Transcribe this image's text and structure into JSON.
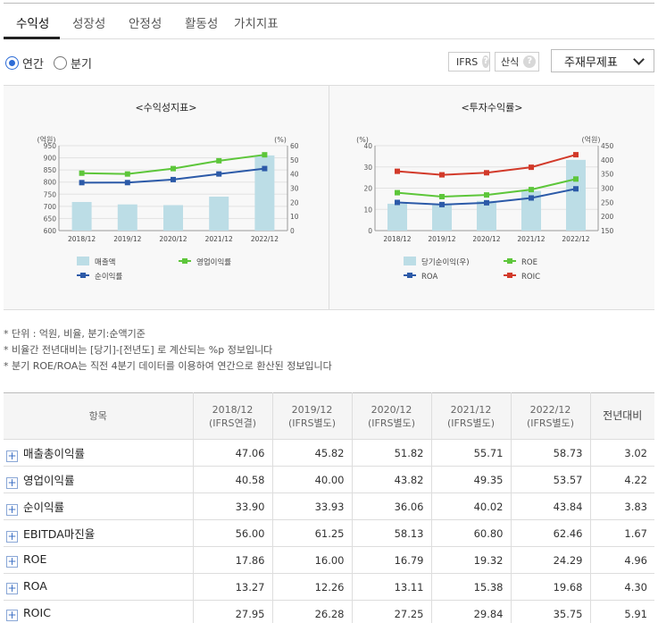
{
  "tabs": [
    {
      "label": "수익성",
      "active": true
    },
    {
      "label": "성장성",
      "active": false
    },
    {
      "label": "안정성",
      "active": false
    },
    {
      "label": "활동성",
      "active": false
    },
    {
      "label": "가치지표",
      "active": false
    }
  ],
  "period": {
    "annual": "연간",
    "quarter": "분기",
    "selected": "annual"
  },
  "buttons": {
    "ifrs": "IFRS",
    "formula": "산식",
    "help": "?"
  },
  "statement_select": "주재무제표",
  "colors": {
    "bar": "#bcdde6",
    "green": "#5dc63a",
    "blue": "#2c5aa8",
    "red": "#d23a2a",
    "accent": "#2d6cd6"
  },
  "chart_data": [
    {
      "type": "bar+line",
      "title": "<수익성지표>",
      "categories": [
        "2018/12",
        "2019/12",
        "2020/12",
        "2021/12",
        "2022/12"
      ],
      "left_axis": {
        "unit": "(억원)",
        "range": [
          600,
          950
        ],
        "ticks": [
          "950",
          "900",
          "850",
          "800",
          "750",
          "700",
          "650",
          "600"
        ]
      },
      "right_axis": {
        "unit": "(%)",
        "range": [
          0,
          60
        ],
        "ticks": [
          "60",
          "50",
          "40",
          "30",
          "20",
          "10",
          "0"
        ]
      },
      "series": [
        {
          "name": "매출액",
          "kind": "bar",
          "axis": "left",
          "values": [
            718,
            708,
            705,
            740,
            910
          ]
        },
        {
          "name": "영업이익률",
          "kind": "line",
          "axis": "right",
          "color": "#5dc63a",
          "values": [
            40.58,
            40.0,
            43.82,
            49.35,
            53.57
          ]
        },
        {
          "name": "순이익률",
          "kind": "line",
          "axis": "right",
          "color": "#2c5aa8",
          "values": [
            33.9,
            33.93,
            36.06,
            40.02,
            43.84
          ]
        }
      ]
    },
    {
      "type": "bar+line",
      "title": "<투자수익률>",
      "categories": [
        "2018/12",
        "2019/12",
        "2020/12",
        "2021/12",
        "2022/12"
      ],
      "left_axis": {
        "unit": "(%)",
        "range": [
          0,
          40
        ],
        "ticks": [
          "40",
          "30",
          "20",
          "10",
          "0"
        ]
      },
      "right_axis": {
        "unit": "(억원)",
        "range": [
          150,
          450
        ],
        "ticks": [
          "450",
          "400",
          "350",
          "300",
          "250",
          "200",
          "150"
        ]
      },
      "series": [
        {
          "name": "당기순이익(우)",
          "kind": "bar",
          "axis": "right",
          "values": [
            245,
            243,
            255,
            290,
            400
          ]
        },
        {
          "name": "ROE",
          "kind": "line",
          "axis": "left",
          "color": "#5dc63a",
          "values": [
            17.86,
            16.0,
            16.79,
            19.32,
            24.29
          ]
        },
        {
          "name": "ROA",
          "kind": "line",
          "axis": "left",
          "color": "#2c5aa8",
          "values": [
            13.27,
            12.26,
            13.11,
            15.38,
            19.68
          ]
        },
        {
          "name": "ROIC",
          "kind": "line",
          "axis": "left",
          "color": "#d23a2a",
          "values": [
            27.95,
            26.28,
            27.25,
            29.84,
            35.75
          ]
        }
      ]
    }
  ],
  "notes": [
    "* 단위 : 억원, 비율, 분기:순액기준",
    "* 비율간 전년대비는 [당기]-[전년도] 로 계산되는 %p 정보입니다",
    "* 분기 ROE/ROA는 직전 4분기 데이터를 이용하여 연간으로 환산된 정보입니다"
  ],
  "table": {
    "item_header": "항목",
    "columns": [
      {
        "year": "2018/12",
        "basis": "(IFRS연결)"
      },
      {
        "year": "2019/12",
        "basis": "(IFRS별도)"
      },
      {
        "year": "2020/12",
        "basis": "(IFRS별도)"
      },
      {
        "year": "2021/12",
        "basis": "(IFRS별도)"
      },
      {
        "year": "2022/12",
        "basis": "(IFRS별도)"
      }
    ],
    "yoy_header": "전년대비",
    "rows": [
      {
        "label": "매출총이익률",
        "values": [
          "47.06",
          "45.82",
          "51.82",
          "55.71",
          "58.73"
        ],
        "yoy": "3.02"
      },
      {
        "label": "영업이익률",
        "values": [
          "40.58",
          "40.00",
          "43.82",
          "49.35",
          "53.57"
        ],
        "yoy": "4.22"
      },
      {
        "label": "순이익률",
        "values": [
          "33.90",
          "33.93",
          "36.06",
          "40.02",
          "43.84"
        ],
        "yoy": "3.83"
      },
      {
        "label": "EBITDA마진율",
        "values": [
          "56.00",
          "61.25",
          "58.13",
          "60.80",
          "62.46"
        ],
        "yoy": "1.67"
      },
      {
        "label": "ROE",
        "values": [
          "17.86",
          "16.00",
          "16.79",
          "19.32",
          "24.29"
        ],
        "yoy": "4.96"
      },
      {
        "label": "ROA",
        "values": [
          "13.27",
          "12.26",
          "13.11",
          "15.38",
          "19.68"
        ],
        "yoy": "4.30"
      },
      {
        "label": "ROIC",
        "values": [
          "27.95",
          "26.28",
          "27.25",
          "29.84",
          "35.75"
        ],
        "yoy": "5.91"
      }
    ]
  }
}
